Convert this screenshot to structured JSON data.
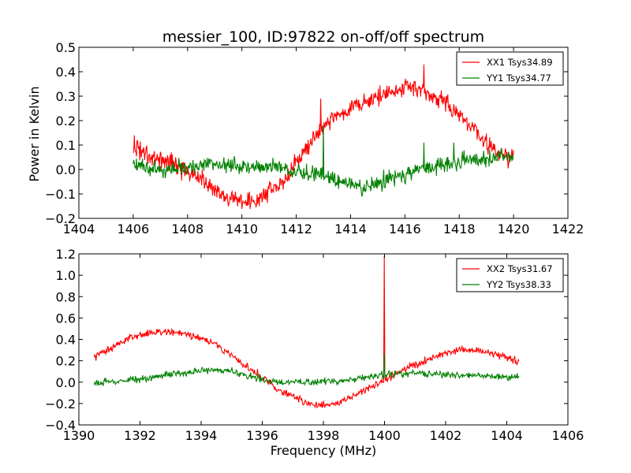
{
  "figure": {
    "title": "messier_100, ID:97822 on-off/off spectrum",
    "ylabel": "Power in Kelvin",
    "xlabel": "Frequency (MHz)"
  },
  "chart_data": [
    {
      "type": "line",
      "title": "messier_100, ID:97822 on-off/off spectrum",
      "xlabel": "",
      "ylabel": "Power in Kelvin",
      "xlim": [
        1404,
        1422
      ],
      "ylim": [
        -0.2,
        0.5
      ],
      "xticks": [
        1404,
        1406,
        1408,
        1410,
        1412,
        1414,
        1416,
        1418,
        1420,
        1422
      ],
      "yticks": [
        -0.2,
        -0.1,
        0.0,
        0.1,
        0.2,
        0.3,
        0.4,
        0.5
      ],
      "xtick_labels": [
        "1404",
        "1406",
        "1408",
        "1410",
        "1412",
        "1414",
        "1416",
        "1418",
        "1420",
        "1422"
      ],
      "ytick_labels": [
        "−0.2",
        "−0.1",
        "0.0",
        "0.1",
        "0.2",
        "0.3",
        "0.4",
        "0.5"
      ],
      "grid": false,
      "legend": "top-right",
      "series": [
        {
          "name": "XX1 Tsys34.89",
          "color": "#ff0000",
          "noise": 0.018,
          "points": [
            [
              1406.0,
              0.09
            ],
            [
              1406.5,
              0.07
            ],
            [
              1407.0,
              0.04
            ],
            [
              1407.5,
              0.02
            ],
            [
              1408.0,
              0.0
            ],
            [
              1408.5,
              -0.04
            ],
            [
              1409.0,
              -0.09
            ],
            [
              1409.5,
              -0.12
            ],
            [
              1410.0,
              -0.13
            ],
            [
              1410.5,
              -0.13
            ],
            [
              1411.0,
              -0.09
            ],
            [
              1411.5,
              -0.05
            ],
            [
              1412.0,
              0.02
            ],
            [
              1412.5,
              0.11
            ],
            [
              1413.0,
              0.17
            ],
            [
              1413.5,
              0.22
            ],
            [
              1414.0,
              0.25
            ],
            [
              1414.5,
              0.28
            ],
            [
              1415.0,
              0.3
            ],
            [
              1415.5,
              0.32
            ],
            [
              1416.0,
              0.34
            ],
            [
              1416.5,
              0.33
            ],
            [
              1417.0,
              0.3
            ],
            [
              1417.5,
              0.27
            ],
            [
              1418.0,
              0.23
            ],
            [
              1418.5,
              0.17
            ],
            [
              1419.0,
              0.11
            ],
            [
              1419.5,
              0.06
            ],
            [
              1420.0,
              0.04
            ]
          ],
          "spikes": [
            [
              1406.05,
              0.14
            ],
            [
              1409.0,
              -0.11
            ],
            [
              1412.9,
              0.29
            ],
            [
              1416.7,
              0.43
            ]
          ]
        },
        {
          "name": "YY1 Tsys34.77",
          "color": "#008000",
          "noise": 0.016,
          "points": [
            [
              1406.0,
              0.02
            ],
            [
              1407.0,
              0.0
            ],
            [
              1408.0,
              0.01
            ],
            [
              1409.0,
              0.02
            ],
            [
              1410.0,
              0.02
            ],
            [
              1411.0,
              0.01
            ],
            [
              1412.0,
              -0.01
            ],
            [
              1413.0,
              -0.02
            ],
            [
              1413.5,
              -0.04
            ],
            [
              1414.0,
              -0.06
            ],
            [
              1414.5,
              -0.07
            ],
            [
              1415.0,
              -0.06
            ],
            [
              1415.5,
              -0.04
            ],
            [
              1416.0,
              -0.02
            ],
            [
              1416.5,
              0.0
            ],
            [
              1417.0,
              0.01
            ],
            [
              1417.5,
              0.02
            ],
            [
              1418.0,
              0.03
            ],
            [
              1418.5,
              0.04
            ],
            [
              1419.0,
              0.04
            ],
            [
              1419.5,
              0.05
            ],
            [
              1420.0,
              0.05
            ]
          ],
          "spikes": [
            [
              1413.0,
              0.18
            ],
            [
              1416.7,
              0.11
            ],
            [
              1417.8,
              0.11
            ]
          ]
        }
      ]
    },
    {
      "type": "line",
      "title": "",
      "xlabel": "Frequency (MHz)",
      "ylabel": "",
      "xlim": [
        1390,
        1406
      ],
      "ylim": [
        -0.4,
        1.2
      ],
      "xticks": [
        1390,
        1392,
        1394,
        1396,
        1398,
        1400,
        1402,
        1404,
        1406
      ],
      "yticks": [
        -0.4,
        -0.2,
        0.0,
        0.2,
        0.4,
        0.6,
        0.8,
        1.0,
        1.2
      ],
      "xtick_labels": [
        "1390",
        "1392",
        "1394",
        "1396",
        "1398",
        "1400",
        "1402",
        "1404",
        "1406"
      ],
      "ytick_labels": [
        "−0.4",
        "−0.2",
        "0.0",
        "0.2",
        "0.4",
        "0.6",
        "0.8",
        "1.0",
        "1.2"
      ],
      "grid": false,
      "legend": "top-right",
      "series": [
        {
          "name": "XX2 Tsys31.67",
          "color": "#ff0000",
          "noise": 0.018,
          "points": [
            [
              1390.5,
              0.24
            ],
            [
              1391.0,
              0.31
            ],
            [
              1391.5,
              0.39
            ],
            [
              1392.0,
              0.45
            ],
            [
              1392.5,
              0.47
            ],
            [
              1393.0,
              0.47
            ],
            [
              1393.5,
              0.45
            ],
            [
              1394.0,
              0.41
            ],
            [
              1394.5,
              0.35
            ],
            [
              1395.0,
              0.25
            ],
            [
              1395.5,
              0.14
            ],
            [
              1396.0,
              0.04
            ],
            [
              1396.5,
              -0.06
            ],
            [
              1397.0,
              -0.14
            ],
            [
              1397.5,
              -0.2
            ],
            [
              1398.0,
              -0.21
            ],
            [
              1398.5,
              -0.19
            ],
            [
              1399.0,
              -0.13
            ],
            [
              1399.5,
              -0.05
            ],
            [
              1400.0,
              0.02
            ],
            [
              1400.5,
              0.1
            ],
            [
              1401.0,
              0.16
            ],
            [
              1401.5,
              0.22
            ],
            [
              1402.0,
              0.27
            ],
            [
              1402.5,
              0.3
            ],
            [
              1403.0,
              0.3
            ],
            [
              1403.5,
              0.28
            ],
            [
              1404.0,
              0.23
            ],
            [
              1404.4,
              0.18
            ]
          ],
          "spikes": [
            [
              1400.0,
              1.18
            ]
          ]
        },
        {
          "name": "YY2 Tsys38.33",
          "color": "#008000",
          "noise": 0.016,
          "points": [
            [
              1390.5,
              -0.01
            ],
            [
              1391.0,
              0.0
            ],
            [
              1392.0,
              0.03
            ],
            [
              1393.0,
              0.07
            ],
            [
              1394.0,
              0.11
            ],
            [
              1394.5,
              0.12
            ],
            [
              1395.0,
              0.1
            ],
            [
              1395.5,
              0.06
            ],
            [
              1396.0,
              0.03
            ],
            [
              1396.5,
              0.0
            ],
            [
              1397.0,
              0.0
            ],
            [
              1397.5,
              0.0
            ],
            [
              1398.0,
              0.0
            ],
            [
              1398.5,
              0.01
            ],
            [
              1399.0,
              0.03
            ],
            [
              1399.5,
              0.05
            ],
            [
              1400.0,
              0.07
            ],
            [
              1400.5,
              0.08
            ],
            [
              1401.0,
              0.08
            ],
            [
              1402.0,
              0.07
            ],
            [
              1403.0,
              0.06
            ],
            [
              1404.0,
              0.05
            ],
            [
              1404.4,
              0.05
            ]
          ],
          "spikes": [
            [
              1400.0,
              0.27
            ]
          ]
        }
      ]
    }
  ]
}
